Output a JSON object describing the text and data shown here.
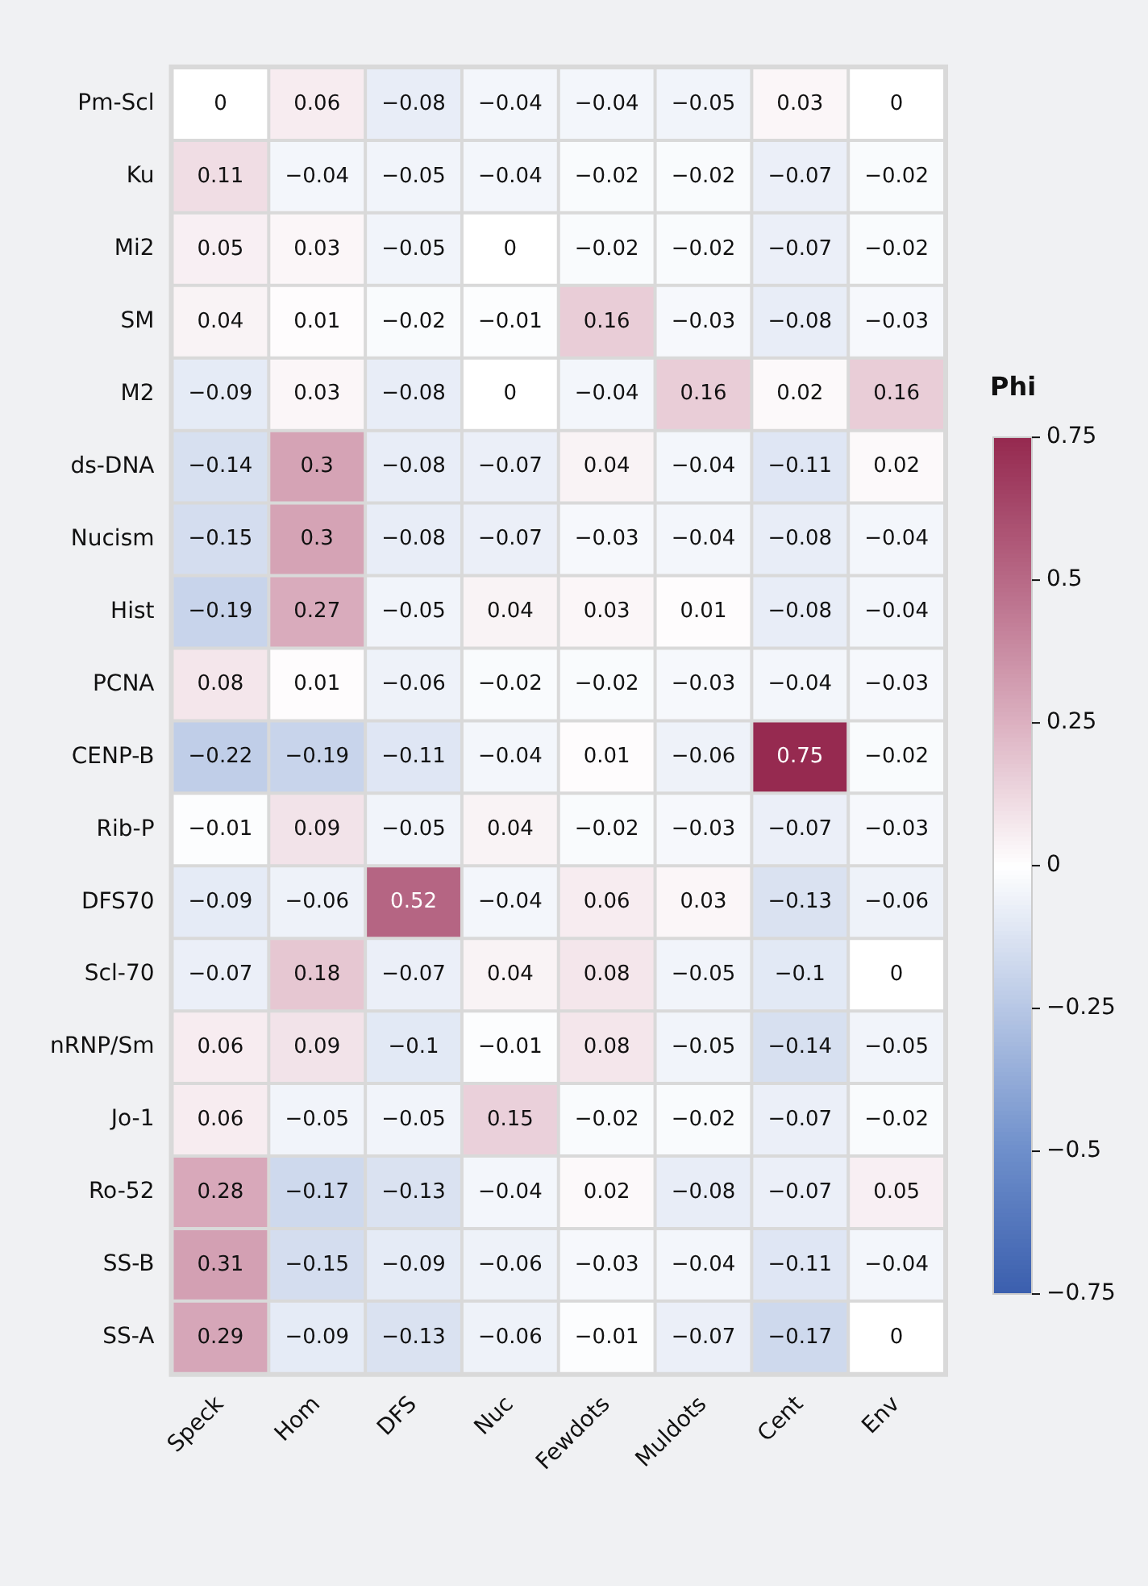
{
  "chart_data": {
    "type": "heatmap",
    "clabel": "Phi",
    "categories": [
      "Speck",
      "Hom",
      "DFS",
      "Nuc",
      "Fewdots",
      "Muldots",
      "Cent",
      "Env"
    ],
    "y_categories": [
      "Pm-Scl",
      "Ku",
      "Mi2",
      "SM",
      "M2",
      "ds-DNA",
      "Nucism",
      "Hist",
      "PCNA",
      "CENP-B",
      "Rib-P",
      "DFS70",
      "Scl-70",
      "nRNP/Sm",
      "Jo-1",
      "Ro-52",
      "SS-B",
      "SS-A"
    ],
    "cells": [
      [
        0,
        0.06,
        -0.08,
        -0.04,
        -0.04,
        -0.05,
        0.03,
        0
      ],
      [
        0.11,
        -0.04,
        -0.05,
        -0.04,
        -0.02,
        -0.02,
        -0.07,
        -0.02
      ],
      [
        0.05,
        0.03,
        -0.05,
        0,
        -0.02,
        -0.02,
        -0.07,
        -0.02
      ],
      [
        0.04,
        0.01,
        -0.02,
        -0.01,
        0.16,
        -0.03,
        -0.08,
        -0.03
      ],
      [
        -0.09,
        0.03,
        -0.08,
        0,
        -0.04,
        0.16,
        0.02,
        0.16
      ],
      [
        -0.14,
        0.3,
        -0.08,
        -0.07,
        0.04,
        -0.04,
        -0.11,
        0.02
      ],
      [
        -0.15,
        0.3,
        -0.08,
        -0.07,
        -0.03,
        -0.04,
        -0.08,
        -0.04
      ],
      [
        -0.19,
        0.27,
        -0.05,
        0.04,
        0.03,
        0.01,
        -0.08,
        -0.04
      ],
      [
        0.08,
        0.01,
        -0.06,
        -0.02,
        -0.02,
        -0.03,
        -0.04,
        -0.03
      ],
      [
        -0.22,
        -0.19,
        -0.11,
        -0.04,
        0.01,
        -0.06,
        0.75,
        -0.02
      ],
      [
        -0.01,
        0.09,
        -0.05,
        0.04,
        -0.02,
        -0.03,
        -0.07,
        -0.03
      ],
      [
        -0.09,
        -0.06,
        0.52,
        -0.04,
        0.06,
        0.03,
        -0.13,
        -0.06
      ],
      [
        -0.07,
        0.18,
        -0.07,
        0.04,
        0.08,
        -0.05,
        -0.1,
        0
      ],
      [
        0.06,
        0.09,
        -0.1,
        -0.01,
        0.08,
        -0.05,
        -0.14,
        -0.05
      ],
      [
        0.06,
        -0.05,
        -0.05,
        0.15,
        -0.02,
        -0.02,
        -0.07,
        -0.02
      ],
      [
        0.28,
        -0.17,
        -0.13,
        -0.04,
        0.02,
        -0.08,
        -0.07,
        0.05
      ],
      [
        0.31,
        -0.15,
        -0.09,
        -0.06,
        -0.03,
        -0.04,
        -0.11,
        -0.04
      ],
      [
        0.29,
        -0.09,
        -0.13,
        -0.06,
        -0.01,
        -0.07,
        -0.17,
        0
      ]
    ],
    "data_labels": true,
    "clim": [
      -0.75,
      0.75
    ],
    "cticks": [
      -0.75,
      -0.5,
      -0.25,
      0,
      0.25,
      0.5,
      0.75
    ]
  }
}
